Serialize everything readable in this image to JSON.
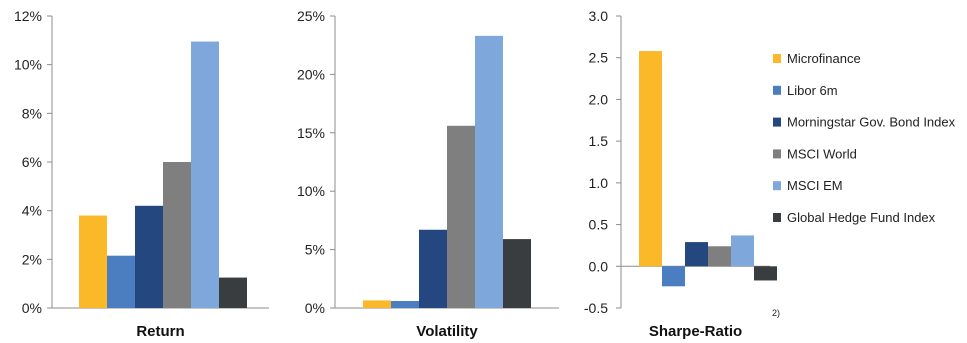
{
  "colors": {
    "Microfinance": "#fbb829",
    "Libor 6m": "#4a7ec0",
    "Morningstar Gov. Bond Index": "#24477f",
    "MSCI World": "#7f7f7f",
    "MSCI EM": "#7ea7dc",
    "Global Hedge Fund Index": "#3a3d40"
  },
  "footnote": "2)",
  "chart_data": [
    {
      "type": "bar",
      "title": "Return",
      "ylim": [
        0,
        12
      ],
      "ytick_values": [
        0,
        2,
        4,
        6,
        8,
        10,
        12
      ],
      "ytick_labels": [
        "0%",
        "2%",
        "4%",
        "6%",
        "8%",
        "10%",
        "12%"
      ],
      "series": [
        {
          "name": "Microfinance",
          "value": 3.8
        },
        {
          "name": "Libor 6m",
          "value": 2.15
        },
        {
          "name": "Morningstar Gov. Bond Index",
          "value": 4.2
        },
        {
          "name": "MSCI World",
          "value": 6.0
        },
        {
          "name": "MSCI EM",
          "value": 10.95
        },
        {
          "name": "Global Hedge Fund Index",
          "value": 1.25
        }
      ]
    },
    {
      "type": "bar",
      "title": "Volatility",
      "ylim": [
        0,
        25
      ],
      "ytick_values": [
        0,
        5,
        10,
        15,
        20,
        25
      ],
      "ytick_labels": [
        "0%",
        "5%",
        "10%",
        "15%",
        "20%",
        "25%"
      ],
      "series": [
        {
          "name": "Microfinance",
          "value": 0.65
        },
        {
          "name": "Libor 6m",
          "value": 0.6
        },
        {
          "name": "Morningstar Gov. Bond Index",
          "value": 6.7
        },
        {
          "name": "MSCI World",
          "value": 15.6
        },
        {
          "name": "MSCI EM",
          "value": 23.3
        },
        {
          "name": "Global Hedge Fund Index",
          "value": 5.9
        }
      ]
    },
    {
      "type": "bar",
      "title": "Sharpe-Ratio",
      "ylim": [
        -0.5,
        3.0
      ],
      "ytick_values": [
        -0.5,
        0,
        0.5,
        1,
        1.5,
        2,
        2.5,
        3
      ],
      "ytick_labels": [
        "-0.5",
        "0.0",
        "0.5",
        "1.0",
        "1.5",
        "2.0",
        "2.5",
        "3.0"
      ],
      "series": [
        {
          "name": "Microfinance",
          "value": 2.58
        },
        {
          "name": "Libor 6m",
          "value": -0.24
        },
        {
          "name": "Morningstar Gov. Bond Index",
          "value": 0.29
        },
        {
          "name": "MSCI World",
          "value": 0.24
        },
        {
          "name": "MSCI EM",
          "value": 0.37
        },
        {
          "name": "Global Hedge Fund Index",
          "value": -0.17
        }
      ]
    }
  ],
  "legend": {
    "position": "right",
    "items": [
      "Microfinance",
      "Libor 6m",
      "Morningstar Gov. Bond Index",
      "MSCI World",
      "MSCI EM",
      "Global Hedge Fund Index"
    ]
  }
}
